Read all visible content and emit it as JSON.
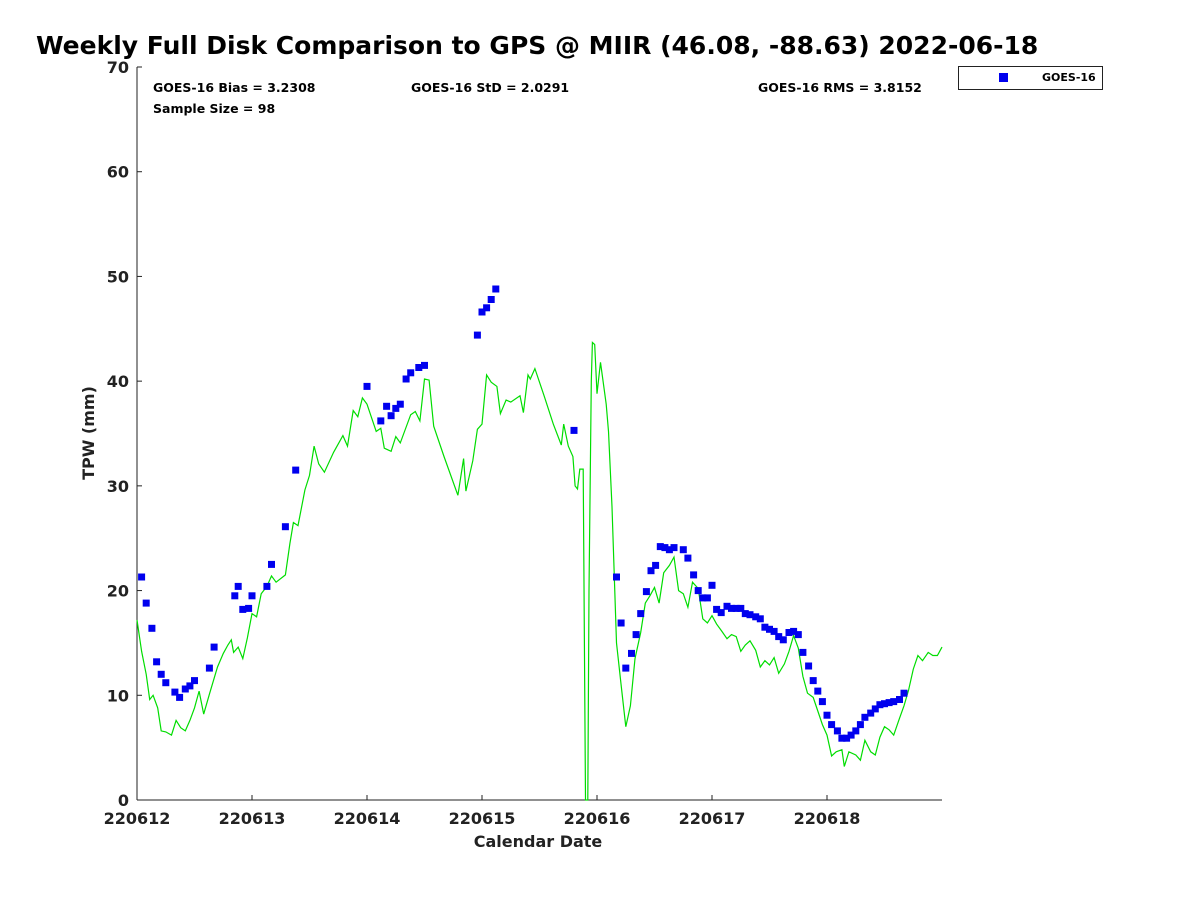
{
  "chart_data": {
    "type": "scatter",
    "title": "Weekly Full Disk Comparison to GPS @ MIIR (46.08, -88.63) 2022-06-18",
    "xlabel": "Calendar Date",
    "ylabel": "TPW (mm)",
    "ylim": [
      0,
      70
    ],
    "yticks": [
      0,
      10,
      20,
      30,
      40,
      50,
      60,
      70
    ],
    "xlim": [
      0,
      7
    ],
    "xticks": [
      {
        "value": 0,
        "label": "220612"
      },
      {
        "value": 1,
        "label": "220613"
      },
      {
        "value": 2,
        "label": "220614"
      },
      {
        "value": 3,
        "label": "220615"
      },
      {
        "value": 4,
        "label": "220616"
      },
      {
        "value": 5,
        "label": "220617"
      },
      {
        "value": 6,
        "label": "220618"
      }
    ],
    "grid": false,
    "legend": {
      "placement": "outside-top-right",
      "entries": [
        "GOES-16"
      ]
    },
    "stats": {
      "bias": "GOES-16 Bias = 3.2308",
      "std": "GOES-16 StD = 2.0291",
      "rms": "GOES-16 RMS = 3.8152",
      "sample": "Sample Size = 98"
    },
    "series": [
      {
        "name": "GOES-16",
        "marker": "square",
        "color": "#0000ee",
        "points": [
          [
            0.04,
            21.3
          ],
          [
            0.08,
            18.8
          ],
          [
            0.13,
            16.4
          ],
          [
            0.17,
            13.2
          ],
          [
            0.21,
            12.0
          ],
          [
            0.25,
            11.2
          ],
          [
            0.33,
            10.3
          ],
          [
            0.37,
            9.8
          ],
          [
            0.42,
            10.6
          ],
          [
            0.46,
            10.9
          ],
          [
            0.5,
            11.4
          ],
          [
            0.63,
            12.6
          ],
          [
            0.67,
            14.6
          ],
          [
            0.85,
            19.5
          ],
          [
            0.88,
            20.4
          ],
          [
            0.92,
            18.2
          ],
          [
            0.97,
            18.3
          ],
          [
            1.0,
            19.5
          ],
          [
            1.13,
            20.4
          ],
          [
            1.17,
            22.5
          ],
          [
            1.29,
            26.1
          ],
          [
            1.38,
            31.5
          ],
          [
            2.0,
            39.5
          ],
          [
            2.12,
            36.2
          ],
          [
            2.17,
            37.6
          ],
          [
            2.21,
            36.7
          ],
          [
            2.25,
            37.4
          ],
          [
            2.29,
            37.8
          ],
          [
            2.34,
            40.2
          ],
          [
            2.38,
            40.8
          ],
          [
            2.45,
            41.3
          ],
          [
            2.5,
            41.5
          ],
          [
            2.96,
            44.4
          ],
          [
            3.0,
            46.6
          ],
          [
            3.04,
            47.0
          ],
          [
            3.08,
            47.8
          ],
          [
            3.12,
            48.8
          ],
          [
            3.8,
            35.3
          ],
          [
            4.17,
            21.3
          ],
          [
            4.21,
            16.9
          ],
          [
            4.25,
            12.6
          ],
          [
            4.3,
            14.0
          ],
          [
            4.34,
            15.8
          ],
          [
            4.38,
            17.8
          ],
          [
            4.43,
            19.9
          ],
          [
            4.47,
            21.9
          ],
          [
            4.51,
            22.4
          ],
          [
            4.55,
            24.2
          ],
          [
            4.59,
            24.1
          ],
          [
            4.63,
            23.9
          ],
          [
            4.67,
            24.1
          ],
          [
            4.75,
            23.9
          ],
          [
            4.79,
            23.1
          ],
          [
            4.84,
            21.5
          ],
          [
            4.88,
            20.0
          ],
          [
            4.92,
            19.3
          ],
          [
            4.96,
            19.3
          ],
          [
            5.0,
            20.5
          ],
          [
            5.04,
            18.2
          ],
          [
            5.08,
            17.9
          ],
          [
            5.13,
            18.5
          ],
          [
            5.17,
            18.3
          ],
          [
            5.21,
            18.3
          ],
          [
            5.25,
            18.3
          ],
          [
            5.29,
            17.8
          ],
          [
            5.33,
            17.7
          ],
          [
            5.38,
            17.5
          ],
          [
            5.42,
            17.3
          ],
          [
            5.46,
            16.5
          ],
          [
            5.5,
            16.3
          ],
          [
            5.54,
            16.1
          ],
          [
            5.58,
            15.6
          ],
          [
            5.62,
            15.3
          ],
          [
            5.67,
            16.0
          ],
          [
            5.71,
            16.1
          ],
          [
            5.75,
            15.8
          ],
          [
            5.79,
            14.1
          ],
          [
            5.84,
            12.8
          ],
          [
            5.88,
            11.4
          ],
          [
            5.92,
            10.4
          ],
          [
            5.96,
            9.4
          ],
          [
            6.0,
            8.1
          ],
          [
            6.04,
            7.2
          ],
          [
            6.09,
            6.6
          ],
          [
            6.13,
            5.9
          ],
          [
            6.17,
            5.9
          ],
          [
            6.21,
            6.2
          ],
          [
            6.25,
            6.6
          ],
          [
            6.29,
            7.2
          ],
          [
            6.33,
            7.9
          ],
          [
            6.38,
            8.3
          ],
          [
            6.42,
            8.7
          ],
          [
            6.46,
            9.1
          ],
          [
            6.5,
            9.2
          ],
          [
            6.54,
            9.3
          ],
          [
            6.58,
            9.4
          ],
          [
            6.63,
            9.6
          ],
          [
            6.67,
            10.2
          ]
        ]
      },
      {
        "name": "GPS",
        "marker": "line",
        "color": "#00dd00",
        "points": [
          [
            0.0,
            17.2
          ],
          [
            0.04,
            14.2
          ],
          [
            0.08,
            12.0
          ],
          [
            0.11,
            9.6
          ],
          [
            0.14,
            10.0
          ],
          [
            0.18,
            8.8
          ],
          [
            0.21,
            6.6
          ],
          [
            0.25,
            6.5
          ],
          [
            0.3,
            6.2
          ],
          [
            0.34,
            7.6
          ],
          [
            0.38,
            6.9
          ],
          [
            0.42,
            6.6
          ],
          [
            0.46,
            7.6
          ],
          [
            0.5,
            8.8
          ],
          [
            0.54,
            10.4
          ],
          [
            0.58,
            8.2
          ],
          [
            0.63,
            10.1
          ],
          [
            0.7,
            12.7
          ],
          [
            0.75,
            14.0
          ],
          [
            0.79,
            14.8
          ],
          [
            0.82,
            15.3
          ],
          [
            0.84,
            14.1
          ],
          [
            0.88,
            14.6
          ],
          [
            0.92,
            13.5
          ],
          [
            0.96,
            15.5
          ],
          [
            1.0,
            17.8
          ],
          [
            1.04,
            17.5
          ],
          [
            1.08,
            19.7
          ],
          [
            1.13,
            20.4
          ],
          [
            1.17,
            21.4
          ],
          [
            1.21,
            20.8
          ],
          [
            1.29,
            21.5
          ],
          [
            1.33,
            24.5
          ],
          [
            1.36,
            26.5
          ],
          [
            1.4,
            26.2
          ],
          [
            1.46,
            29.6
          ],
          [
            1.5,
            31.0
          ],
          [
            1.54,
            33.8
          ],
          [
            1.58,
            32.1
          ],
          [
            1.63,
            31.3
          ],
          [
            1.71,
            33.2
          ],
          [
            1.79,
            34.8
          ],
          [
            1.83,
            33.8
          ],
          [
            1.88,
            37.2
          ],
          [
            1.92,
            36.6
          ],
          [
            1.96,
            38.4
          ],
          [
            2.0,
            37.8
          ],
          [
            2.04,
            36.5
          ],
          [
            2.08,
            35.2
          ],
          [
            2.12,
            35.5
          ],
          [
            2.15,
            33.6
          ],
          [
            2.21,
            33.3
          ],
          [
            2.25,
            34.7
          ],
          [
            2.29,
            34.1
          ],
          [
            2.38,
            36.8
          ],
          [
            2.42,
            37.1
          ],
          [
            2.46,
            36.2
          ],
          [
            2.5,
            40.2
          ],
          [
            2.54,
            40.1
          ],
          [
            2.58,
            35.7
          ],
          [
            2.67,
            32.8
          ],
          [
            2.79,
            29.1
          ],
          [
            2.84,
            32.6
          ],
          [
            2.86,
            29.5
          ],
          [
            2.92,
            32.4
          ],
          [
            2.96,
            35.4
          ],
          [
            3.0,
            35.9
          ],
          [
            3.04,
            40.6
          ],
          [
            3.08,
            39.9
          ],
          [
            3.13,
            39.5
          ],
          [
            3.16,
            36.9
          ],
          [
            3.21,
            38.2
          ],
          [
            3.25,
            38.0
          ],
          [
            3.33,
            38.6
          ],
          [
            3.36,
            37.0
          ],
          [
            3.4,
            40.6
          ],
          [
            3.42,
            40.2
          ],
          [
            3.46,
            41.2
          ],
          [
            3.54,
            38.6
          ],
          [
            3.62,
            35.9
          ],
          [
            3.69,
            33.9
          ],
          [
            3.71,
            35.9
          ],
          [
            3.75,
            33.8
          ],
          [
            3.79,
            32.8
          ],
          [
            3.81,
            30.0
          ],
          [
            3.83,
            29.7
          ],
          [
            3.85,
            31.6
          ],
          [
            3.88,
            31.6
          ],
          [
            3.89,
            15.0
          ],
          [
            3.9,
            0.0
          ],
          [
            3.92,
            0.0
          ],
          [
            3.93,
            20.0
          ],
          [
            3.95,
            40.0
          ],
          [
            3.96,
            43.7
          ],
          [
            3.98,
            43.5
          ],
          [
            4.0,
            38.8
          ],
          [
            4.03,
            41.8
          ],
          [
            4.08,
            37.8
          ],
          [
            4.1,
            35.2
          ],
          [
            4.13,
            28.0
          ],
          [
            4.17,
            15.0
          ],
          [
            4.21,
            11.0
          ],
          [
            4.25,
            7.0
          ],
          [
            4.29,
            9.0
          ],
          [
            4.33,
            13.5
          ],
          [
            4.38,
            16.0
          ],
          [
            4.42,
            18.8
          ],
          [
            4.46,
            19.5
          ],
          [
            4.5,
            20.3
          ],
          [
            4.54,
            18.8
          ],
          [
            4.58,
            21.7
          ],
          [
            4.63,
            22.4
          ],
          [
            4.67,
            23.2
          ],
          [
            4.71,
            20.0
          ],
          [
            4.75,
            19.7
          ],
          [
            4.79,
            18.4
          ],
          [
            4.83,
            20.8
          ],
          [
            4.88,
            20.2
          ],
          [
            4.92,
            17.3
          ],
          [
            4.96,
            16.9
          ],
          [
            5.0,
            17.6
          ],
          [
            5.04,
            16.8
          ],
          [
            5.08,
            16.2
          ],
          [
            5.13,
            15.4
          ],
          [
            5.17,
            15.8
          ],
          [
            5.21,
            15.6
          ],
          [
            5.25,
            14.2
          ],
          [
            5.29,
            14.8
          ],
          [
            5.33,
            15.2
          ],
          [
            5.38,
            14.3
          ],
          [
            5.42,
            12.7
          ],
          [
            5.46,
            13.3
          ],
          [
            5.5,
            12.9
          ],
          [
            5.54,
            13.6
          ],
          [
            5.58,
            12.1
          ],
          [
            5.63,
            13.0
          ],
          [
            5.67,
            14.2
          ],
          [
            5.71,
            15.7
          ],
          [
            5.75,
            14.5
          ],
          [
            5.79,
            11.8
          ],
          [
            5.83,
            10.2
          ],
          [
            5.88,
            9.8
          ],
          [
            5.92,
            8.5
          ],
          [
            5.96,
            7.2
          ],
          [
            6.0,
            6.2
          ],
          [
            6.04,
            4.2
          ],
          [
            6.08,
            4.6
          ],
          [
            6.13,
            4.8
          ],
          [
            6.15,
            3.2
          ],
          [
            6.19,
            4.6
          ],
          [
            6.25,
            4.3
          ],
          [
            6.29,
            3.8
          ],
          [
            6.33,
            5.7
          ],
          [
            6.38,
            4.6
          ],
          [
            6.42,
            4.3
          ],
          [
            6.46,
            6.0
          ],
          [
            6.5,
            7.0
          ],
          [
            6.54,
            6.7
          ],
          [
            6.58,
            6.2
          ],
          [
            6.63,
            7.8
          ],
          [
            6.67,
            9.0
          ],
          [
            6.71,
            10.5
          ],
          [
            6.75,
            12.5
          ],
          [
            6.79,
            13.8
          ],
          [
            6.83,
            13.3
          ],
          [
            6.88,
            14.1
          ],
          [
            6.92,
            13.8
          ],
          [
            6.96,
            13.8
          ],
          [
            7.0,
            14.6
          ]
        ]
      }
    ]
  }
}
